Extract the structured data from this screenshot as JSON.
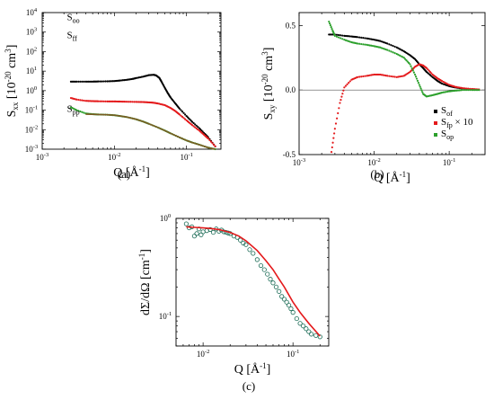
{
  "chart_data": [
    {
      "id": "a",
      "type": "scatter",
      "caption": "(a)",
      "xlabel": "Q [Å",
      "xlabel_sup": "-1",
      "xlabel_end": "]",
      "ylabel": "S",
      "ylabel_sub": "xx",
      "ylabel_unit": " [10",
      "ylabel_sup": "-20",
      "ylabel_unit2": " cm",
      "ylabel_sup2": "3",
      "ylabel_end": "]",
      "xscale": "log",
      "yscale": "log",
      "xlim": [
        0.001,
        0.3
      ],
      "ylim": [
        0.001,
        10000
      ],
      "x_ticks": [
        {
          "v": 0.001,
          "base": "10",
          "exp": "-3"
        },
        {
          "v": 0.01,
          "base": "10",
          "exp": "-2"
        },
        {
          "v": 0.1,
          "base": "10",
          "exp": "-1"
        }
      ],
      "y_ticks": [
        {
          "v": 0.001,
          "base": "10",
          "exp": "-3"
        },
        {
          "v": 0.01,
          "base": "10",
          "exp": "-2"
        },
        {
          "v": 0.1,
          "base": "10",
          "exp": "-1"
        },
        {
          "v": 1,
          "base": "10",
          "exp": "0"
        },
        {
          "v": 10,
          "base": "10",
          "exp": "1"
        },
        {
          "v": 100,
          "base": "10",
          "exp": "2"
        },
        {
          "v": 1000,
          "base": "10",
          "exp": "3"
        },
        {
          "v": 10000,
          "base": "10",
          "exp": "4"
        }
      ],
      "annotations": [
        {
          "base": "S",
          "sub": "oo",
          "x": 0.0022,
          "y": 4000
        },
        {
          "base": "S",
          "sub": "ff",
          "x": 0.0022,
          "y": 500
        },
        {
          "base": "S",
          "sub": "pp",
          "x": 0.0022,
          "y": 0.08
        }
      ],
      "series": [
        {
          "label": "oo",
          "color": "#000000",
          "x": [
            0.0025,
            0.003,
            0.004,
            0.005,
            0.006,
            0.008,
            0.01,
            0.012,
            0.015,
            0.018,
            0.02,
            0.025,
            0.03,
            0.035,
            0.038,
            0.042,
            0.045,
            0.05,
            0.055,
            0.06,
            0.07,
            0.08,
            0.1,
            0.12,
            0.15,
            0.18,
            0.2,
            0.25
          ],
          "y": [
            2.9,
            2.9,
            2.9,
            2.9,
            2.95,
            3.0,
            3.1,
            3.3,
            3.6,
            4.0,
            4.4,
            5.2,
            6.2,
            6.5,
            6.0,
            4.5,
            2.9,
            1.4,
            0.75,
            0.45,
            0.22,
            0.12,
            0.05,
            0.025,
            0.012,
            0.006,
            0.004,
            0.0014
          ]
        },
        {
          "label": "ff",
          "color": "#e41a1c",
          "x": [
            0.0025,
            0.003,
            0.004,
            0.005,
            0.006,
            0.008,
            0.01,
            0.012,
            0.015,
            0.02,
            0.025,
            0.03,
            0.035,
            0.04,
            0.05,
            0.06,
            0.07,
            0.08,
            0.1,
            0.12,
            0.15,
            0.18,
            0.2,
            0.25
          ],
          "y": [
            0.42,
            0.35,
            0.3,
            0.29,
            0.285,
            0.28,
            0.28,
            0.275,
            0.27,
            0.265,
            0.26,
            0.25,
            0.24,
            0.22,
            0.18,
            0.13,
            0.09,
            0.06,
            0.03,
            0.017,
            0.009,
            0.005,
            0.0035,
            0.0014
          ]
        },
        {
          "label": "pp",
          "color": "#2ca02c",
          "x": [
            0.0025,
            0.003,
            0.004,
            0.005,
            0.006,
            0.008,
            0.01,
            0.012,
            0.015,
            0.02,
            0.025,
            0.03,
            0.04,
            0.05,
            0.06,
            0.08,
            0.1,
            0.12,
            0.15,
            0.2,
            0.25
          ],
          "y": [
            0.14,
            0.1,
            0.068,
            0.062,
            0.06,
            0.058,
            0.055,
            0.05,
            0.044,
            0.034,
            0.026,
            0.02,
            0.013,
            0.009,
            0.0065,
            0.004,
            0.0028,
            0.0022,
            0.0017,
            0.0012,
            0.001
          ]
        },
        {
          "label": "pp-fit",
          "color": "#7a5a22",
          "line": true,
          "x": [
            0.004,
            0.005,
            0.006,
            0.008,
            0.01,
            0.012,
            0.015,
            0.02,
            0.025,
            0.03,
            0.04,
            0.05,
            0.06,
            0.08,
            0.1,
            0.12,
            0.15,
            0.2,
            0.25
          ],
          "y": [
            0.062,
            0.061,
            0.06,
            0.058,
            0.055,
            0.05,
            0.044,
            0.034,
            0.026,
            0.02,
            0.013,
            0.009,
            0.0065,
            0.004,
            0.0028,
            0.0022,
            0.0017,
            0.0012,
            0.001
          ]
        }
      ]
    },
    {
      "id": "b",
      "type": "scatter",
      "caption": "(b)",
      "xlabel": "Q [Å",
      "xlabel_sup": "-1",
      "xlabel_end": "]",
      "ylabel": "S",
      "ylabel_sub": "xy",
      "ylabel_unit": " [10",
      "ylabel_sup": "-20",
      "ylabel_unit2": " cm",
      "ylabel_sup2": "3",
      "ylabel_end": "]",
      "xscale": "log",
      "yscale": "linear",
      "xlim": [
        0.001,
        0.3
      ],
      "ylim": [
        -0.5,
        0.6
      ],
      "x_ticks": [
        {
          "v": 0.001,
          "base": "10",
          "exp": "-3"
        },
        {
          "v": 0.01,
          "base": "10",
          "exp": "-2"
        },
        {
          "v": 0.1,
          "base": "10",
          "exp": "-1"
        }
      ],
      "y_ticks": [
        {
          "v": 0.5,
          "label": "0.5"
        },
        {
          "v": 0.0,
          "label": "0.0"
        },
        {
          "v": -0.5,
          "label": "-0.5"
        }
      ],
      "zero_line": true,
      "legend": [
        {
          "base": "S",
          "sub": "of",
          "extra": "",
          "color": "#000000"
        },
        {
          "base": "S",
          "sub": "fp",
          "extra": " × 10",
          "color": "#e41a1c"
        },
        {
          "base": "S",
          "sub": "op",
          "extra": "",
          "color": "#2ca02c"
        }
      ],
      "series": [
        {
          "label": "of",
          "color": "#000000",
          "x": [
            0.0025,
            0.003,
            0.004,
            0.005,
            0.006,
            0.008,
            0.01,
            0.012,
            0.015,
            0.02,
            0.025,
            0.03,
            0.035,
            0.04,
            0.045,
            0.05,
            0.06,
            0.07,
            0.08,
            0.1,
            0.12,
            0.15,
            0.2,
            0.25
          ],
          "y": [
            0.43,
            0.43,
            0.42,
            0.415,
            0.41,
            0.4,
            0.39,
            0.38,
            0.36,
            0.33,
            0.3,
            0.27,
            0.24,
            0.2,
            0.17,
            0.14,
            0.1,
            0.07,
            0.05,
            0.03,
            0.02,
            0.012,
            0.006,
            0.003
          ]
        },
        {
          "label": "fp",
          "color": "#e41a1c",
          "x": [
            0.0027,
            0.003,
            0.0035,
            0.004,
            0.005,
            0.006,
            0.008,
            0.01,
            0.012,
            0.015,
            0.02,
            0.025,
            0.03,
            0.035,
            0.04,
            0.045,
            0.05,
            0.06,
            0.07,
            0.08,
            0.1,
            0.12,
            0.15,
            0.2,
            0.25
          ],
          "y": [
            -0.48,
            -0.3,
            -0.1,
            0.02,
            0.08,
            0.1,
            0.11,
            0.12,
            0.12,
            0.11,
            0.1,
            0.11,
            0.14,
            0.18,
            0.2,
            0.19,
            0.17,
            0.12,
            0.09,
            0.07,
            0.04,
            0.025,
            0.015,
            0.008,
            0.004
          ]
        },
        {
          "label": "op",
          "color": "#2ca02c",
          "x": [
            0.0025,
            0.0028,
            0.003,
            0.004,
            0.005,
            0.006,
            0.008,
            0.01,
            0.012,
            0.015,
            0.02,
            0.025,
            0.03,
            0.035,
            0.04,
            0.045,
            0.05,
            0.06,
            0.07,
            0.08,
            0.1,
            0.12,
            0.15,
            0.2,
            0.25
          ],
          "y": [
            0.53,
            0.46,
            0.42,
            0.39,
            0.37,
            0.36,
            0.35,
            0.34,
            0.33,
            0.31,
            0.28,
            0.25,
            0.2,
            0.12,
            0.04,
            -0.03,
            -0.05,
            -0.04,
            -0.03,
            -0.02,
            -0.01,
            -0.005,
            0.0,
            0.0,
            0.0
          ]
        }
      ]
    },
    {
      "id": "c",
      "type": "scatter",
      "caption": "(c)",
      "xlabel": "Q [Å",
      "xlabel_sup": "-1",
      "xlabel_end": "]",
      "ylabel": "dΣ/dΩ [cm",
      "ylabel_sup": "-1",
      "ylabel_end": "]",
      "xscale": "log",
      "yscale": "log",
      "xlim": [
        0.005,
        0.25
      ],
      "ylim": [
        0.05,
        1.0
      ],
      "x_ticks": [
        {
          "v": 0.01,
          "base": "10",
          "exp": "-2"
        },
        {
          "v": 0.1,
          "base": "10",
          "exp": "-1"
        }
      ],
      "y_ticks": [
        {
          "v": 0.1,
          "base": "10",
          "exp": "-1"
        },
        {
          "v": 1,
          "base": "10",
          "exp": "0"
        }
      ],
      "series": [
        {
          "label": "data",
          "color": "#1a6b55",
          "open": true,
          "x": [
            0.0065,
            0.007,
            0.0075,
            0.008,
            0.0085,
            0.009,
            0.0095,
            0.01,
            0.011,
            0.012,
            0.013,
            0.014,
            0.015,
            0.016,
            0.017,
            0.018,
            0.019,
            0.02,
            0.022,
            0.024,
            0.026,
            0.028,
            0.03,
            0.033,
            0.036,
            0.04,
            0.044,
            0.048,
            0.052,
            0.056,
            0.06,
            0.065,
            0.07,
            0.075,
            0.08,
            0.085,
            0.09,
            0.095,
            0.1,
            0.11,
            0.12,
            0.13,
            0.14,
            0.15,
            0.16,
            0.18,
            0.2
          ],
          "y": [
            0.88,
            0.8,
            0.82,
            0.66,
            0.7,
            0.78,
            0.68,
            0.73,
            0.75,
            0.77,
            0.72,
            0.78,
            0.74,
            0.76,
            0.73,
            0.72,
            0.71,
            0.7,
            0.66,
            0.64,
            0.6,
            0.56,
            0.54,
            0.48,
            0.44,
            0.38,
            0.33,
            0.3,
            0.27,
            0.24,
            0.22,
            0.2,
            0.18,
            0.16,
            0.15,
            0.14,
            0.13,
            0.12,
            0.11,
            0.095,
            0.085,
            0.08,
            0.075,
            0.07,
            0.066,
            0.064,
            0.062
          ]
        },
        {
          "label": "fit",
          "color": "#e41a1c",
          "line": true,
          "x": [
            0.0065,
            0.008,
            0.01,
            0.012,
            0.015,
            0.02,
            0.025,
            0.03,
            0.04,
            0.05,
            0.06,
            0.07,
            0.08,
            0.1,
            0.12,
            0.15,
            0.2
          ],
          "y": [
            0.82,
            0.81,
            0.8,
            0.79,
            0.77,
            0.72,
            0.66,
            0.59,
            0.47,
            0.37,
            0.3,
            0.24,
            0.2,
            0.14,
            0.11,
            0.085,
            0.063
          ]
        }
      ]
    }
  ]
}
